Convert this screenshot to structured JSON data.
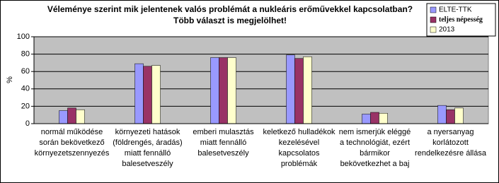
{
  "chart_data": {
    "type": "bar",
    "title": "Véleménye szerint mik jelentenek valós problémát a nukleáris erőművekkel kapcsolatban?",
    "subtitle": "Több választ is megjelölhet!",
    "y_label": "%",
    "categories": [
      [
        "normál működése",
        "során bekövetkező",
        "környezetszennyezés"
      ],
      [
        "környezeti hatások",
        "(földrengés, áradás)",
        "miatt fennálló",
        "balesetveszély"
      ],
      [
        "emberi mulasztás",
        "miatt fennálló",
        "balesetveszély"
      ],
      [
        "keletkező hulladékok",
        "kezelésével",
        "kapcsolatos",
        "problémák"
      ],
      [
        "nem ismerjük eléggé",
        "a technológiát, ezért",
        "bármikor",
        "bekövetkezhet a baj"
      ],
      [
        "a nyersanyag",
        "korlátozott",
        "rendelkezésre állása"
      ]
    ],
    "series": [
      {
        "name": "ELTE-TTK",
        "color": "#9999ff",
        "values": [
          15,
          69,
          76,
          79,
          11,
          21
        ]
      },
      {
        "name": "teljes népesség",
        "color": "#993366",
        "values": [
          18,
          66,
          76,
          75,
          13,
          16
        ]
      },
      {
        "name": "2013",
        "color": "#ffffcc",
        "values": [
          16,
          67,
          76,
          77,
          12,
          18
        ]
      }
    ],
    "ylim": [
      0,
      100
    ],
    "yticks": [
      0,
      20,
      40,
      60,
      80,
      100
    ],
    "grid": true,
    "legend": "top-right"
  }
}
